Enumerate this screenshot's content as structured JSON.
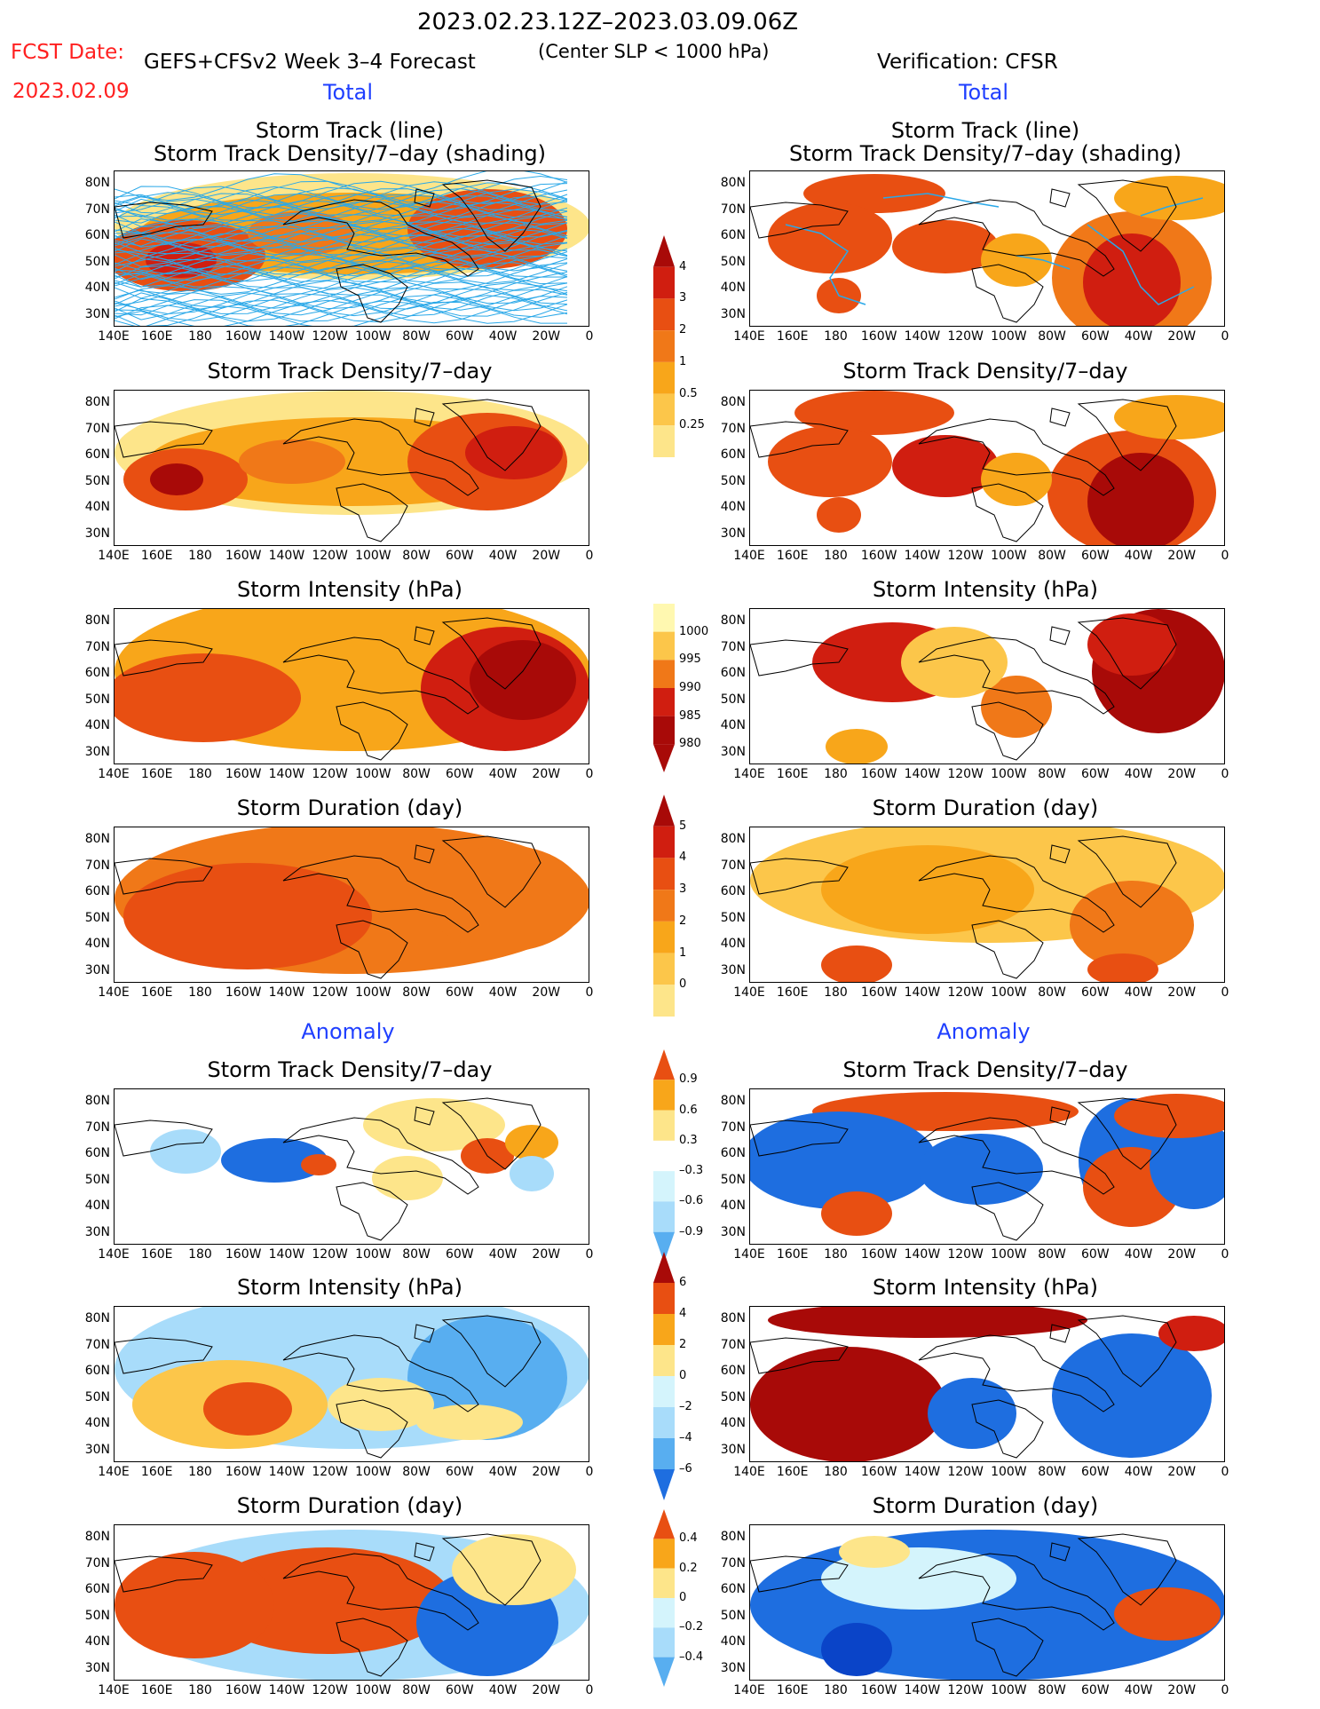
{
  "header": {
    "period": "2023.02.23.12Z–2023.03.09.06Z",
    "fcst_label": "FCST Date:",
    "fcst_date": "2023.02.09",
    "model": "GEFS+CFSv2 Week 3–4 Forecast",
    "criterion": "(Center SLP < 1000 hPa)",
    "verification": "Verification: CFSR"
  },
  "sections": {
    "total_left": "Total",
    "total_right": "Total",
    "anomaly_left": "Anomaly",
    "anomaly_right": "Anomaly"
  },
  "titles": {
    "track_line": "Storm Track (line)",
    "track_shading": "Storm Track Density/7–day (shading)",
    "density": "Storm Track Density/7–day",
    "intensity": "Storm Intensity (hPa)",
    "duration": "Storm Duration (day)"
  },
  "axes": {
    "lat": [
      "80N",
      "70N",
      "60N",
      "50N",
      "40N",
      "30N"
    ],
    "lon": [
      "140E",
      "160E",
      "180",
      "160W",
      "140W",
      "120W",
      "100W",
      "80W",
      "60W",
      "40W",
      "20W",
      "0"
    ]
  },
  "colorbars": {
    "density_total": [
      "4",
      "3",
      "2",
      "1",
      "0.5",
      "0.25"
    ],
    "intensity_total": [
      "1000",
      "995",
      "990",
      "985",
      "980"
    ],
    "duration_total": [
      "5",
      "4",
      "3",
      "2",
      "1",
      "0"
    ],
    "density_anom": [
      "0.9",
      "0.6",
      "0.3",
      "–0.3",
      "–0.6",
      "–0.9"
    ],
    "intensity_anom": [
      "6",
      "4",
      "2",
      "0",
      "–2",
      "–4",
      "–6"
    ],
    "duration_anom": [
      "0.4",
      "0.2",
      "0",
      "–0.2",
      "–0.4"
    ]
  },
  "colors": {
    "warm": [
      "#fff8b0",
      "#fde58a",
      "#fcc64a",
      "#f8a61a",
      "#f07818",
      "#e84f12",
      "#d01e10",
      "#a80a08"
    ],
    "cool": [
      "#d4f4fc",
      "#a8dcfa",
      "#58aef0",
      "#1e6ee0",
      "#0a44c8"
    ],
    "track_line": "#2aa8e8",
    "header_red": "#ff2020",
    "section_blue": "#1f3fff"
  }
}
